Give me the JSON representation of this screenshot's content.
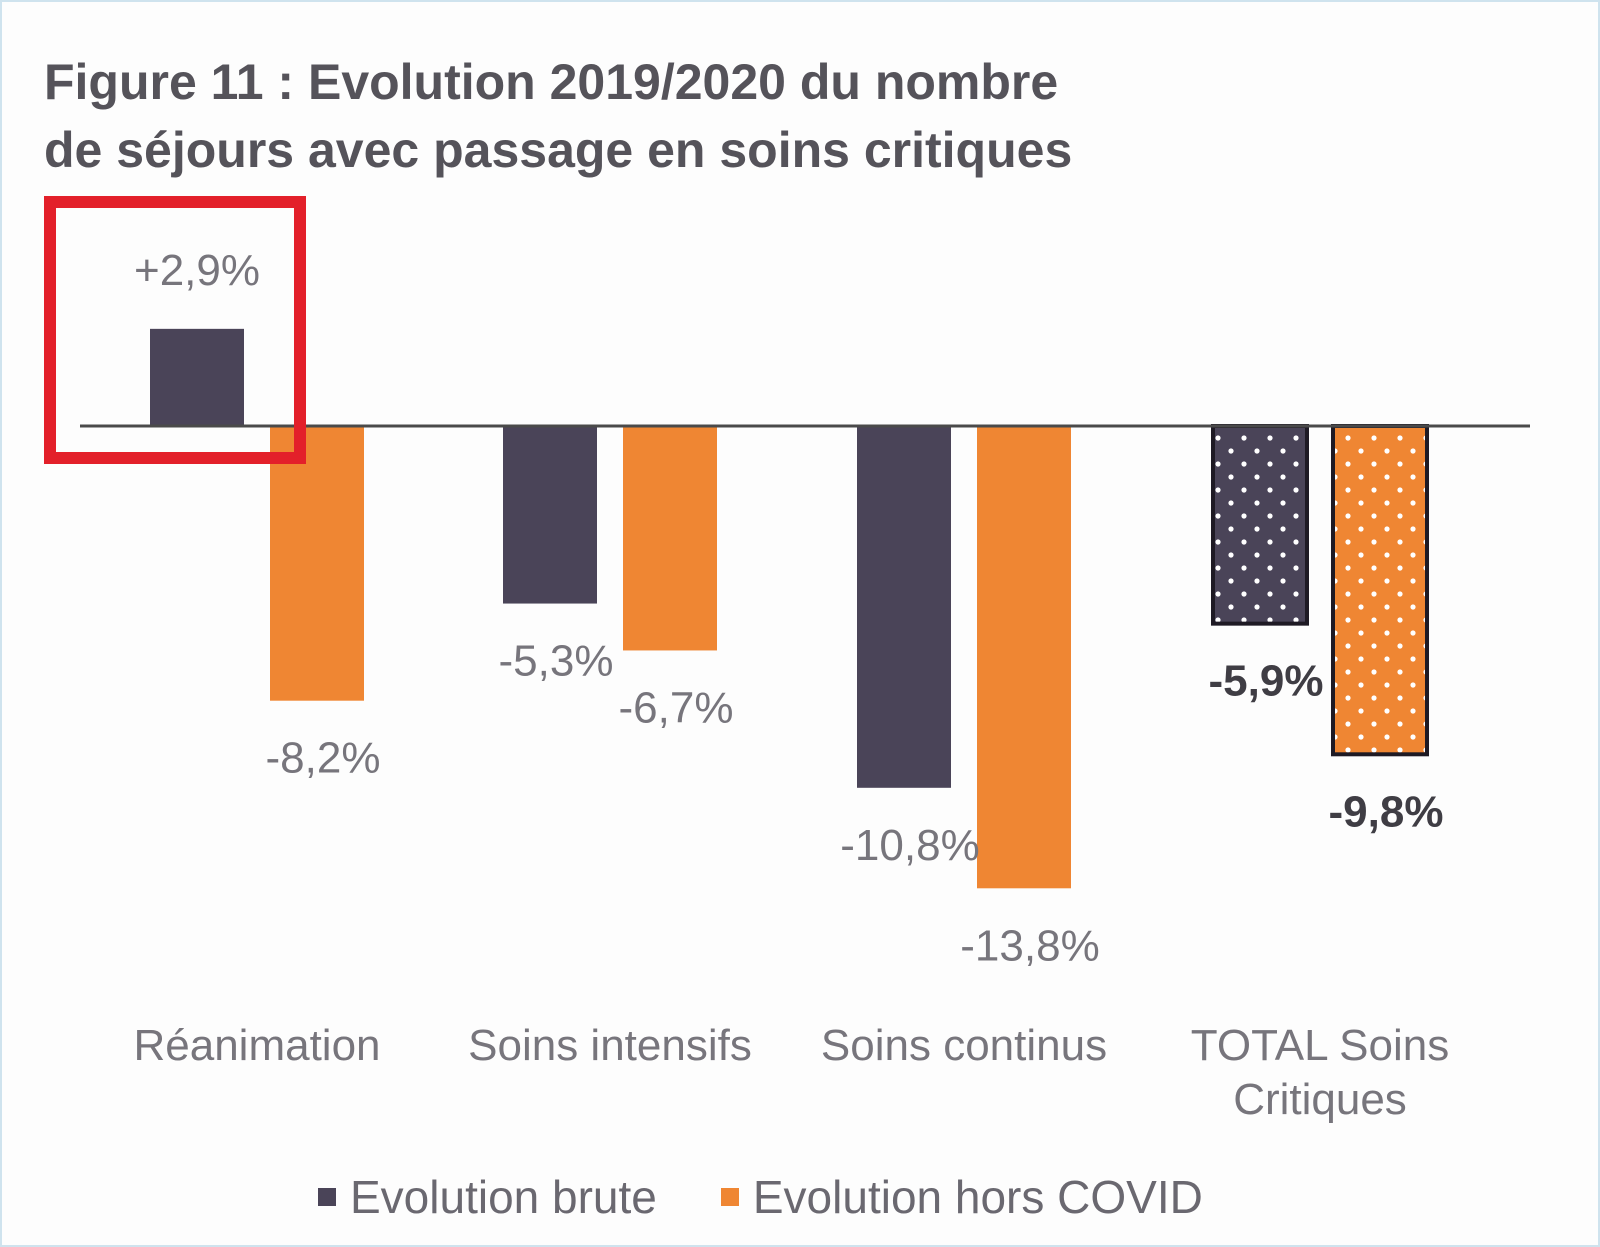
{
  "chart_data": {
    "type": "bar",
    "title_line1": "Figure 11 : Evolution 2019/2020 du nombre",
    "title_line2": "de séjours avec passage en soins critiques",
    "categories": [
      {
        "line1": "Réanimation",
        "line2": ""
      },
      {
        "line1": "Soins intensifs",
        "line2": ""
      },
      {
        "line1": "Soins continus",
        "line2": ""
      },
      {
        "line1": "TOTAL Soins",
        "line2": "Critiques"
      }
    ],
    "series": [
      {
        "name": "Evolution brute",
        "color": "#4a4458",
        "values": [
          2.9,
          -5.3,
          -10.8,
          -5.9
        ],
        "labels": [
          "+2,9%",
          "-5,3%",
          "-10,8%",
          "-5,9%"
        ]
      },
      {
        "name": "Evolution hors COVID",
        "color": "#ef8633",
        "values": [
          -8.2,
          -6.7,
          -13.8,
          -9.8
        ],
        "labels": [
          "-8,2%",
          "-6,7%",
          "-13,8%",
          "-9,8%"
        ]
      }
    ],
    "ylim": [
      -16,
      8
    ],
    "last_category_pattern": "dots",
    "highlight_color": "#e3202a",
    "grid": false,
    "legend_position": "bottom"
  }
}
